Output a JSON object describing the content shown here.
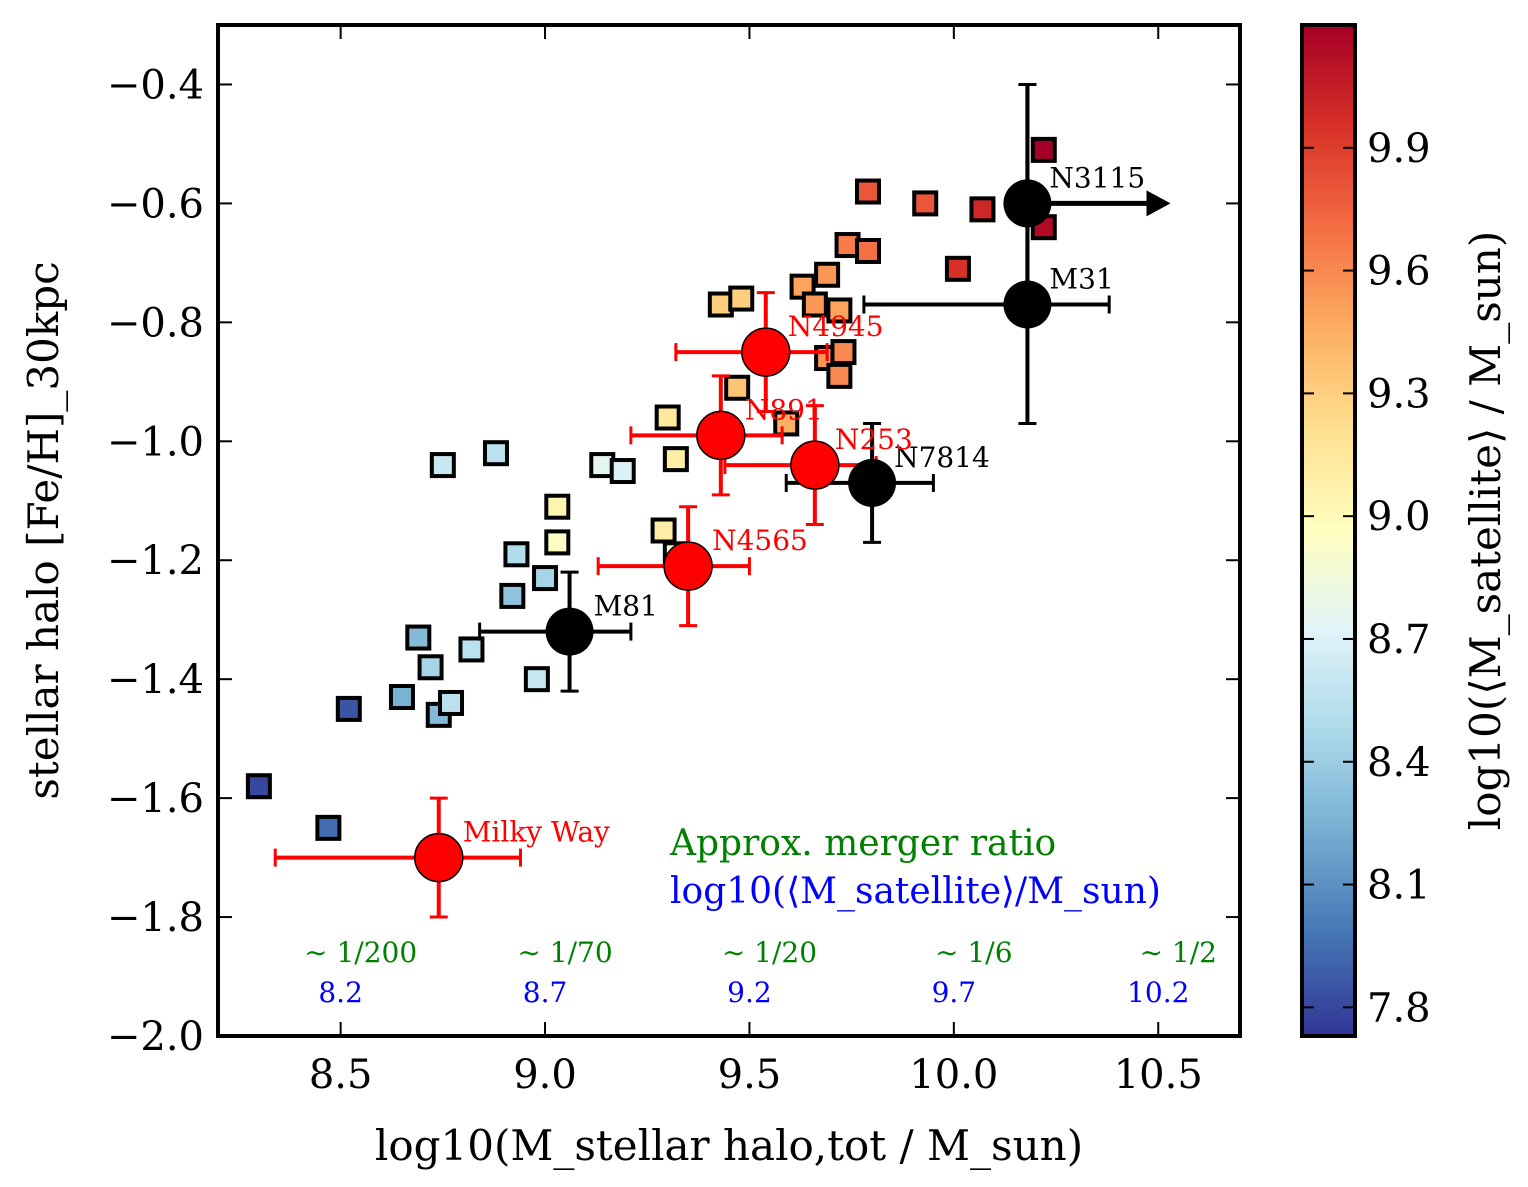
{
  "chart_data": {
    "type": "scatter",
    "xlabel": "log10(M_stellar halo,tot / M_sun)",
    "ylabel": "stellar halo [Fe/H]_30kpc",
    "xlim": [
      8.2,
      10.7
    ],
    "ylim": [
      -2.0,
      -0.3
    ],
    "x_ticks": [
      8.5,
      9.0,
      9.5,
      10.0,
      10.5
    ],
    "x_tick_labels": [
      "8.5",
      "9.0",
      "9.5",
      "10.0",
      "10.5"
    ],
    "y_ticks": [
      -2.0,
      -1.8,
      -1.6,
      -1.4,
      -1.2,
      -1.0,
      -0.8,
      -0.6,
      -0.4
    ],
    "y_tick_labels": [
      "−2.0",
      "−1.8",
      "−1.6",
      "−1.4",
      "−1.2",
      "−1.0",
      "−0.8",
      "−0.6",
      "−0.4"
    ],
    "colorbar": {
      "label": "log10(⟨M_satellite⟩ / M_sun)",
      "range": [
        7.73,
        10.2
      ],
      "ticks": [
        7.8,
        8.1,
        8.4,
        8.7,
        9.0,
        9.3,
        9.6,
        9.9
      ],
      "tick_labels": [
        "7.8",
        "8.1",
        "8.4",
        "8.7",
        "9.0",
        "9.3",
        "9.6",
        "9.9"
      ],
      "stops": [
        "#313695",
        "#4575b4",
        "#74add1",
        "#abd9e9",
        "#e0f3f8",
        "#ffffbf",
        "#fee090",
        "#fdae61",
        "#f46d43",
        "#d73027",
        "#a50026"
      ]
    },
    "simulated_halos": [
      {
        "x": 8.3,
        "y": -1.58,
        "c": 7.8
      },
      {
        "x": 8.47,
        "y": -1.65,
        "c": 7.95
      },
      {
        "x": 8.52,
        "y": -1.45,
        "c": 7.85
      },
      {
        "x": 8.65,
        "y": -1.43,
        "c": 8.25
      },
      {
        "x": 8.69,
        "y": -1.33,
        "c": 8.3
      },
      {
        "x": 8.72,
        "y": -1.38,
        "c": 8.45
      },
      {
        "x": 8.74,
        "y": -1.46,
        "c": 8.3
      },
      {
        "x": 8.75,
        "y": -1.04,
        "c": 8.6
      },
      {
        "x": 8.77,
        "y": -1.44,
        "c": 8.55
      },
      {
        "x": 8.82,
        "y": -1.35,
        "c": 8.55
      },
      {
        "x": 8.88,
        "y": -1.02,
        "c": 8.55
      },
      {
        "x": 8.92,
        "y": -1.26,
        "c": 8.35
      },
      {
        "x": 8.93,
        "y": -1.19,
        "c": 8.5
      },
      {
        "x": 8.98,
        "y": -1.4,
        "c": 8.6
      },
      {
        "x": 9.0,
        "y": -1.23,
        "c": 8.45
      },
      {
        "x": 9.03,
        "y": -1.11,
        "c": 9.05
      },
      {
        "x": 9.03,
        "y": -1.17,
        "c": 8.95
      },
      {
        "x": 9.14,
        "y": -1.04,
        "c": 8.75
      },
      {
        "x": 9.19,
        "y": -1.05,
        "c": 8.7
      },
      {
        "x": 9.29,
        "y": -1.15,
        "c": 9.1
      },
      {
        "x": 9.3,
        "y": -0.96,
        "c": 9.15
      },
      {
        "x": 9.32,
        "y": -1.03,
        "c": 9.1
      },
      {
        "x": 9.32,
        "y": -1.19,
        "c": 8.85
      },
      {
        "x": 9.43,
        "y": -0.77,
        "c": 9.3
      },
      {
        "x": 9.47,
        "y": -0.91,
        "c": 9.35
      },
      {
        "x": 9.48,
        "y": -0.76,
        "c": 9.3
      },
      {
        "x": 9.59,
        "y": -0.97,
        "c": 9.45
      },
      {
        "x": 9.63,
        "y": -0.74,
        "c": 9.5
      },
      {
        "x": 9.66,
        "y": -0.77,
        "c": 9.55
      },
      {
        "x": 9.69,
        "y": -0.72,
        "c": 9.55
      },
      {
        "x": 9.69,
        "y": -0.86,
        "c": 9.55
      },
      {
        "x": 9.72,
        "y": -0.78,
        "c": 9.5
      },
      {
        "x": 9.72,
        "y": -0.89,
        "c": 9.6
      },
      {
        "x": 9.73,
        "y": -0.85,
        "c": 9.6
      },
      {
        "x": 9.74,
        "y": -0.67,
        "c": 9.65
      },
      {
        "x": 9.79,
        "y": -0.58,
        "c": 9.8
      },
      {
        "x": 9.79,
        "y": -0.68,
        "c": 9.7
      },
      {
        "x": 9.93,
        "y": -0.6,
        "c": 9.8
      },
      {
        "x": 10.01,
        "y": -0.71,
        "c": 9.95
      },
      {
        "x": 10.07,
        "y": -0.61,
        "c": 10.0
      },
      {
        "x": 10.22,
        "y": -0.51,
        "c": 10.2
      },
      {
        "x": 10.22,
        "y": -0.64,
        "c": 10.15
      }
    ],
    "observed_black": [
      {
        "name": "M81",
        "x": 9.06,
        "y": -1.32,
        "xerr": [
          0.22,
          0.15
        ],
        "yerr": [
          0.1,
          0.1
        ]
      },
      {
        "name": "N7814",
        "x": 9.8,
        "y": -1.07,
        "xerr": [
          0.21,
          0.15
        ],
        "yerr": [
          0.1,
          0.1
        ]
      },
      {
        "name": "M31",
        "x": 10.18,
        "y": -0.77,
        "xerr": [
          0.4,
          0.2
        ],
        "yerr": [
          0.2,
          0.37
        ]
      },
      {
        "name": "N3115",
        "x": 10.18,
        "y": -0.6,
        "xerr": null,
        "yerr": [
          0.2,
          0.2
        ],
        "lower_limit_x": true
      }
    ],
    "observed_red": [
      {
        "name": "Milky Way",
        "x": 8.74,
        "y": -1.7,
        "xerr": [
          0.4,
          0.2
        ],
        "yerr": [
          0.1,
          0.1
        ]
      },
      {
        "name": "N4565",
        "x": 9.35,
        "y": -1.21,
        "xerr": [
          0.22,
          0.15
        ],
        "yerr": [
          0.1,
          0.1
        ]
      },
      {
        "name": "N891",
        "x": 9.43,
        "y": -0.99,
        "xerr": [
          0.22,
          0.15
        ],
        "yerr": [
          0.1,
          0.1
        ]
      },
      {
        "name": "N253",
        "x": 9.66,
        "y": -1.04,
        "xerr": [
          0.22,
          0.15
        ],
        "yerr": [
          0.1,
          0.1
        ]
      },
      {
        "name": "N4945",
        "x": 9.54,
        "y": -0.85,
        "xerr": [
          0.22,
          0.15
        ],
        "yerr": [
          0.1,
          0.1
        ]
      }
    ],
    "merger_ratio": {
      "title": "Approx. merger ratio",
      "subtitle": "log10(⟨M_satellite⟩/M_sun)",
      "ticks": [
        {
          "x": 8.5,
          "ratio": "∼ 1/200",
          "mass": "8.2"
        },
        {
          "x": 9.0,
          "ratio": "∼ 1/70",
          "mass": "8.7"
        },
        {
          "x": 9.5,
          "ratio": "∼ 1/20",
          "mass": "9.2"
        },
        {
          "x": 10.0,
          "ratio": "∼ 1/6",
          "mass": "9.7"
        },
        {
          "x": 10.5,
          "ratio": "∼ 1/2",
          "mass": "10.2"
        }
      ]
    },
    "colors": {
      "red": "#ff0000",
      "black": "#000000",
      "green": "#008000",
      "blue": "#0000ff"
    }
  }
}
